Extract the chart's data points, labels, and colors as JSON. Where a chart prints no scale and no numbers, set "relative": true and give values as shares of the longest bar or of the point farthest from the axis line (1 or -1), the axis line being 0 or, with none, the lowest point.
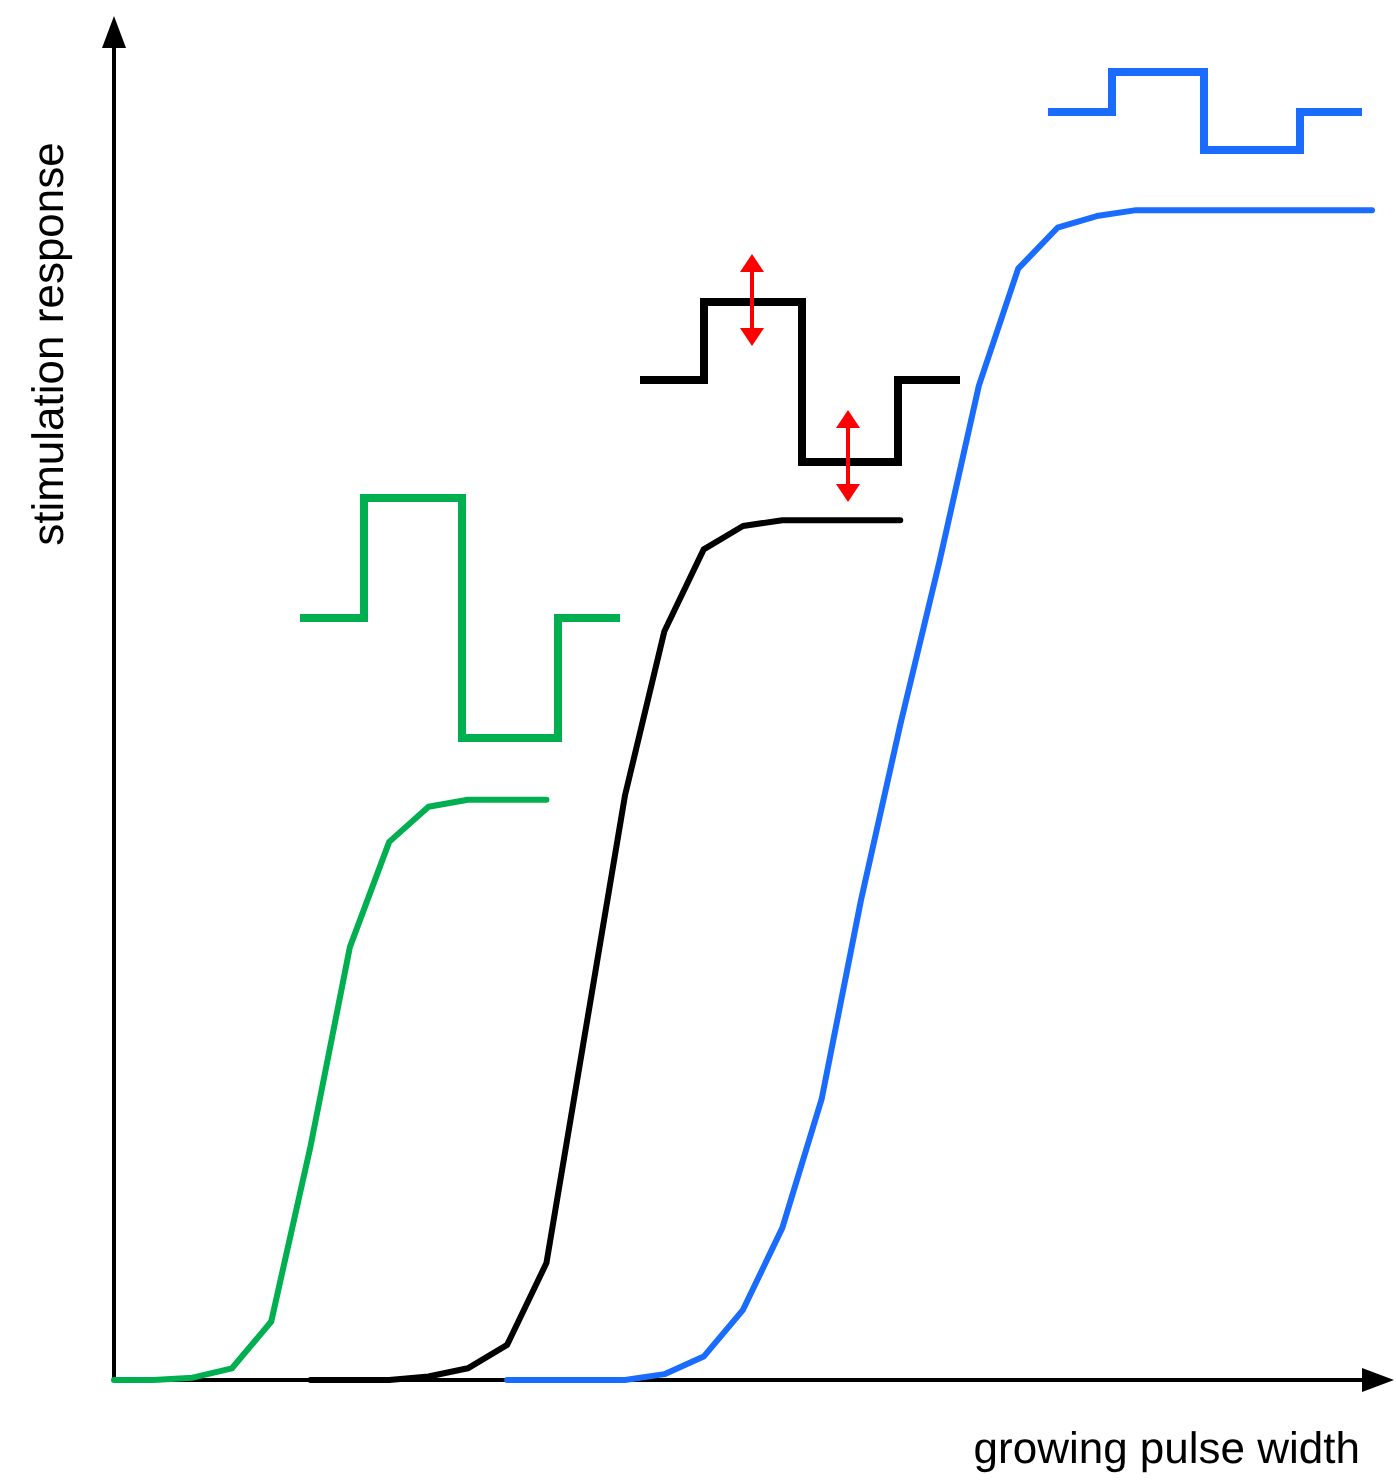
{
  "chart_data": {
    "type": "line",
    "relative": true,
    "xlabel": "growing pulse width",
    "ylabel": "stimulation response",
    "categories": [
      null,
      null,
      null,
      null,
      null,
      null,
      null,
      null,
      null,
      null,
      null,
      null,
      null,
      null,
      null,
      null,
      null,
      null,
      null,
      null,
      null,
      null,
      null,
      null,
      null,
      null,
      null,
      null,
      null,
      null,
      null,
      null,
      null
    ],
    "series": [
      {
        "color": "#00b050",
        "values": [
          0,
          0,
          0.002,
          0.01,
          0.05,
          0.2,
          0.37,
          0.46,
          0.49,
          0.496,
          0.496,
          0.496,
          null,
          null,
          null,
          null,
          null,
          null,
          null,
          null,
          null,
          null,
          null,
          null,
          null,
          null,
          null,
          null,
          null,
          null,
          null,
          null,
          null
        ]
      },
      {
        "color": "#000000",
        "values": [
          null,
          null,
          null,
          null,
          null,
          0,
          0,
          0,
          0.003,
          0.01,
          0.03,
          0.1,
          0.3,
          0.5,
          0.64,
          0.71,
          0.73,
          0.735,
          0.735,
          0.735,
          0.735,
          null,
          null,
          null,
          null,
          null,
          null,
          null,
          null,
          null,
          null,
          null,
          null
        ]
      },
      {
        "color": "#1a6cff",
        "values": [
          null,
          null,
          null,
          null,
          null,
          null,
          null,
          null,
          null,
          null,
          0,
          0,
          0,
          0,
          0.005,
          0.02,
          0.06,
          0.13,
          0.24,
          0.41,
          0.56,
          0.7,
          0.85,
          0.95,
          0.985,
          0.995,
          1,
          1,
          1,
          1,
          1,
          1,
          1
        ]
      }
    ],
    "grid": false,
    "marker": "none",
    "line_style": "solid"
  }
}
